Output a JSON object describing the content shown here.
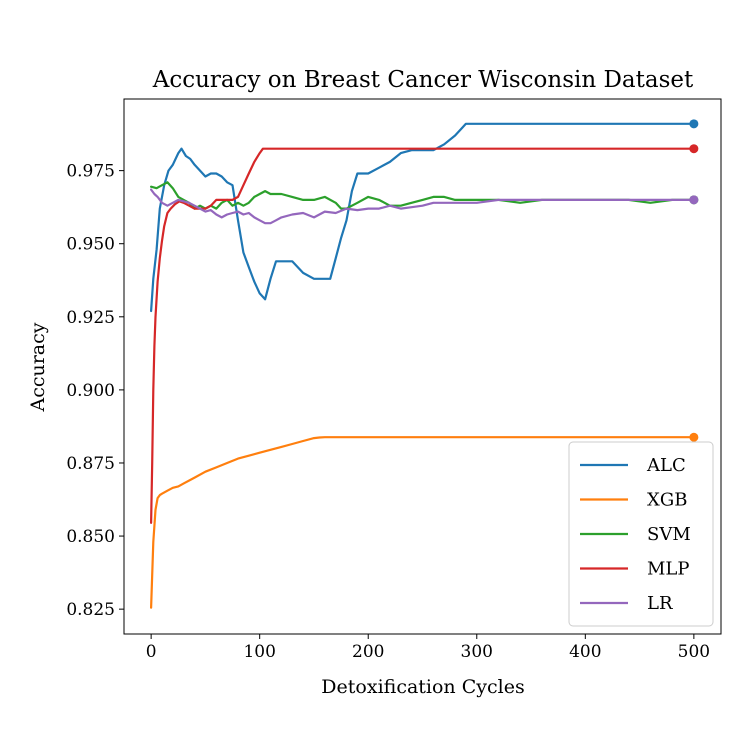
{
  "chart_data": {
    "type": "line",
    "title": "Accuracy on Breast Cancer Wisconsin Dataset",
    "xlabel": "Detoxification Cycles",
    "ylabel": "Accuracy",
    "xlim": [
      -25,
      525
    ],
    "ylim": [
      0.8165,
      0.9995
    ],
    "xticks": [
      0,
      100,
      200,
      300,
      400,
      500
    ],
    "xtick_labels": [
      "0",
      "100",
      "200",
      "300",
      "400",
      "500"
    ],
    "yticks": [
      0.825,
      0.85,
      0.875,
      0.9,
      0.925,
      0.95,
      0.975
    ],
    "ytick_labels": [
      "0.825",
      "0.850",
      "0.875",
      "0.900",
      "0.925",
      "0.950",
      "0.975"
    ],
    "legend_position": "lower-right",
    "series": [
      {
        "name": "ALC",
        "color": "#1f77b4",
        "x": [
          0,
          2,
          5,
          8,
          12,
          16,
          20,
          25,
          28,
          32,
          36,
          40,
          45,
          50,
          55,
          60,
          65,
          70,
          75,
          80,
          85,
          90,
          95,
          100,
          105,
          110,
          115,
          120,
          130,
          140,
          150,
          160,
          165,
          170,
          175,
          180,
          185,
          190,
          200,
          210,
          220,
          230,
          240,
          250,
          260,
          270,
          280,
          290,
          300,
          350,
          400,
          450,
          500
        ],
        "y": [
          0.927,
          0.938,
          0.948,
          0.962,
          0.97,
          0.975,
          0.977,
          0.981,
          0.9825,
          0.98,
          0.979,
          0.977,
          0.975,
          0.973,
          0.974,
          0.974,
          0.973,
          0.971,
          0.97,
          0.958,
          0.947,
          0.942,
          0.937,
          0.933,
          0.931,
          0.938,
          0.944,
          0.944,
          0.944,
          0.94,
          0.938,
          0.938,
          0.938,
          0.945,
          0.952,
          0.958,
          0.968,
          0.974,
          0.974,
          0.976,
          0.978,
          0.981,
          0.982,
          0.982,
          0.982,
          0.984,
          0.987,
          0.991,
          0.991,
          0.991,
          0.991,
          0.991,
          0.991
        ]
      },
      {
        "name": "XGB",
        "color": "#ff7f0e",
        "x": [
          0,
          2,
          4,
          6,
          8,
          10,
          15,
          20,
          25,
          30,
          40,
          50,
          60,
          70,
          80,
          90,
          100,
          110,
          120,
          130,
          140,
          150,
          155,
          160,
          165,
          170,
          200,
          250,
          300,
          350,
          400,
          450,
          500
        ],
        "y": [
          0.8255,
          0.848,
          0.859,
          0.863,
          0.864,
          0.8645,
          0.8655,
          0.8665,
          0.867,
          0.868,
          0.87,
          0.872,
          0.8735,
          0.875,
          0.8765,
          0.8775,
          0.8785,
          0.8795,
          0.8805,
          0.8815,
          0.8825,
          0.8835,
          0.8837,
          0.8838,
          0.8838,
          0.8838,
          0.8838,
          0.8838,
          0.8838,
          0.8838,
          0.8838,
          0.8838,
          0.8838
        ]
      },
      {
        "name": "SVM",
        "color": "#2ca02c",
        "x": [
          0,
          5,
          10,
          15,
          20,
          25,
          30,
          35,
          40,
          45,
          50,
          55,
          60,
          65,
          70,
          75,
          80,
          85,
          90,
          95,
          100,
          105,
          110,
          120,
          130,
          140,
          150,
          160,
          170,
          175,
          180,
          185,
          190,
          200,
          210,
          220,
          230,
          240,
          250,
          260,
          270,
          280,
          290,
          300,
          320,
          340,
          360,
          380,
          400,
          420,
          440,
          460,
          480,
          500
        ],
        "y": [
          0.9695,
          0.969,
          0.97,
          0.971,
          0.969,
          0.966,
          0.965,
          0.964,
          0.962,
          0.963,
          0.962,
          0.963,
          0.962,
          0.964,
          0.965,
          0.963,
          0.964,
          0.963,
          0.964,
          0.966,
          0.967,
          0.968,
          0.967,
          0.967,
          0.966,
          0.965,
          0.965,
          0.966,
          0.964,
          0.962,
          0.962,
          0.963,
          0.964,
          0.966,
          0.965,
          0.963,
          0.963,
          0.964,
          0.965,
          0.966,
          0.966,
          0.965,
          0.965,
          0.965,
          0.965,
          0.964,
          0.965,
          0.965,
          0.965,
          0.965,
          0.965,
          0.964,
          0.965,
          0.965
        ]
      },
      {
        "name": "MLP",
        "color": "#d62728",
        "x": [
          0,
          1,
          2,
          3,
          4,
          6,
          8,
          10,
          12,
          15,
          18,
          22,
          26,
          30,
          35,
          40,
          45,
          50,
          55,
          60,
          65,
          70,
          75,
          80,
          85,
          90,
          95,
          100,
          103,
          105,
          150,
          200,
          250,
          300,
          350,
          400,
          450,
          500
        ],
        "y": [
          0.8545,
          0.875,
          0.9,
          0.915,
          0.925,
          0.937,
          0.945,
          0.951,
          0.956,
          0.9605,
          0.962,
          0.9635,
          0.9645,
          0.964,
          0.963,
          0.962,
          0.962,
          0.962,
          0.963,
          0.965,
          0.965,
          0.965,
          0.965,
          0.966,
          0.97,
          0.974,
          0.978,
          0.981,
          0.9825,
          0.9825,
          0.9825,
          0.9825,
          0.9825,
          0.9825,
          0.9825,
          0.9825,
          0.9825,
          0.9825
        ]
      },
      {
        "name": "LR",
        "color": "#9467bd",
        "x": [
          0,
          3,
          6,
          10,
          15,
          20,
          25,
          30,
          35,
          40,
          45,
          50,
          55,
          60,
          65,
          70,
          75,
          80,
          85,
          90,
          95,
          100,
          105,
          110,
          115,
          120,
          130,
          140,
          150,
          160,
          170,
          180,
          190,
          200,
          210,
          220,
          230,
          240,
          250,
          260,
          280,
          300,
          320,
          340,
          360,
          380,
          400,
          420,
          440,
          460,
          480,
          500
        ],
        "y": [
          0.9685,
          0.967,
          0.966,
          0.964,
          0.963,
          0.964,
          0.965,
          0.9645,
          0.964,
          0.963,
          0.962,
          0.961,
          0.9615,
          0.96,
          0.959,
          0.96,
          0.9605,
          0.961,
          0.96,
          0.9605,
          0.959,
          0.958,
          0.957,
          0.957,
          0.958,
          0.959,
          0.96,
          0.9605,
          0.959,
          0.961,
          0.9605,
          0.962,
          0.9615,
          0.962,
          0.962,
          0.963,
          0.962,
          0.9625,
          0.963,
          0.964,
          0.964,
          0.964,
          0.965,
          0.965,
          0.965,
          0.965,
          0.965,
          0.965,
          0.965,
          0.965,
          0.965,
          0.965
        ]
      }
    ]
  }
}
